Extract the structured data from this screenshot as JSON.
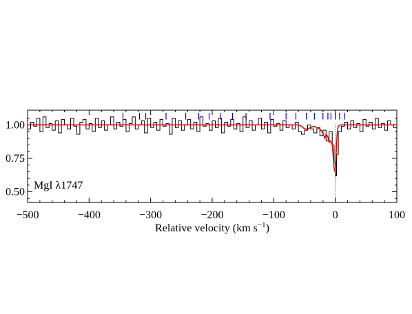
{
  "chart_data": {
    "type": "line",
    "title": "",
    "xlabel": "Relative velocity (km s",
    "xlabel_sup": "−1",
    "xlabel_close": ")",
    "ylabel": "",
    "xlim": [
      -500,
      100
    ],
    "ylim": [
      0.42,
      1.11
    ],
    "x_ticks": [
      -500,
      -400,
      -300,
      -200,
      -100,
      0,
      100
    ],
    "x_tick_labels": [
      "−500",
      "−400",
      "−300",
      "−200",
      "−100",
      "0",
      "100"
    ],
    "y_ticks": [
      0.5,
      0.75,
      1.0
    ],
    "y_tick_labels": [
      "0.50",
      "0.75",
      "1.00"
    ],
    "annotation": "MgI λ1747",
    "colors": {
      "data": "#000000",
      "model": "#e00000",
      "components": "#0000cc",
      "axis": "#000000"
    },
    "series": [
      {
        "kind": "step",
        "x": [
          -500,
          -495,
          -490,
          -485,
          -480,
          -475,
          -470,
          -465,
          -460,
          -455,
          -450,
          -445,
          -440,
          -435,
          -430,
          -425,
          -420,
          -415,
          -410,
          -405,
          -400,
          -395,
          -390,
          -385,
          -380,
          -375,
          -370,
          -365,
          -360,
          -355,
          -350,
          -345,
          -340,
          -335,
          -330,
          -325,
          -320,
          -315,
          -310,
          -305,
          -300,
          -295,
          -290,
          -285,
          -280,
          -275,
          -270,
          -265,
          -260,
          -255,
          -250,
          -245,
          -240,
          -235,
          -230,
          -225,
          -220,
          -215,
          -210,
          -205,
          -200,
          -195,
          -190,
          -185,
          -180,
          -175,
          -170,
          -165,
          -160,
          -155,
          -150,
          -145,
          -140,
          -135,
          -130,
          -125,
          -120,
          -115,
          -110,
          -105,
          -100,
          -95,
          -90,
          -85,
          -80,
          -75,
          -70,
          -65,
          -60,
          -55,
          -50,
          -45,
          -40,
          -35,
          -30,
          -25,
          -20,
          -15,
          -10,
          -5,
          -2,
          0,
          2,
          5,
          10,
          15,
          20,
          25,
          30,
          35,
          40,
          45,
          50,
          55,
          60,
          65,
          70,
          75,
          80,
          85,
          90,
          95,
          100
        ],
        "y": [
          0.97,
          1.02,
          0.99,
          1.05,
          0.95,
          1.06,
          0.98,
          1.01,
          0.96,
          1.03,
          0.94,
          1.04,
          1.0,
          0.97,
          1.05,
          0.99,
          0.93,
          1.02,
          1.04,
          0.97,
          1.01,
          0.95,
          1.05,
          0.98,
          1.03,
          0.96,
          1.0,
          1.06,
          0.97,
          1.02,
          0.99,
          1.04,
          0.95,
          1.01,
          1.06,
          0.97,
          1.0,
          1.03,
          0.94,
          1.05,
          0.98,
          1.02,
          0.96,
          1.04,
          0.99,
          1.01,
          0.93,
          1.05,
          0.98,
          1.03,
          0.96,
          1.0,
          1.04,
          0.97,
          1.02,
          0.95,
          1.06,
          0.99,
          1.01,
          0.96,
          1.03,
          0.98,
          1.05,
          0.94,
          1.02,
          0.99,
          1.04,
          0.97,
          1.01,
          0.95,
          1.06,
          0.98,
          1.03,
          0.96,
          1.0,
          1.05,
          0.97,
          1.02,
          0.94,
          1.04,
          0.99,
          1.01,
          0.96,
          1.03,
          0.98,
          1.0,
          0.97,
          1.02,
          0.95,
          0.93,
          0.96,
          1.0,
          0.97,
          0.94,
          0.98,
          0.92,
          0.96,
          0.88,
          0.95,
          0.85,
          0.72,
          0.62,
          0.78,
          0.95,
          0.99,
          1.02,
          0.97,
          1.03,
          0.98,
          1.01,
          0.95,
          1.04,
          0.99,
          1.02,
          0.97,
          1.05,
          0.98,
          1.01,
          0.96,
          1.03,
          1.0,
          0.98,
          1.02
        ]
      },
      {
        "kind": "line",
        "x": [
          -500,
          -60,
          -55,
          -50,
          -45,
          -40,
          -35,
          -30,
          -25,
          -20,
          -17,
          -15,
          -12,
          -10,
          -8,
          -5,
          -4,
          -3,
          -2,
          -1,
          0,
          1,
          2,
          3,
          4,
          5,
          8,
          10,
          15,
          20,
          100
        ],
        "y": [
          1.0,
          1.0,
          0.99,
          0.97,
          0.97,
          0.98,
          0.99,
          0.98,
          0.97,
          0.94,
          0.9,
          0.93,
          0.91,
          0.87,
          0.88,
          0.85,
          0.8,
          0.74,
          0.68,
          0.65,
          0.67,
          0.74,
          0.85,
          0.93,
          0.97,
          0.99,
          1.0,
          1.0,
          1.0,
          1.0,
          1.0
        ]
      }
    ],
    "components_x": [
      -345,
      -318,
      -308,
      -275,
      -243,
      -222,
      -205,
      -187,
      -167,
      -145,
      -106,
      -80,
      -64,
      -47,
      -34,
      -20,
      -12,
      -7,
      0,
      7,
      15
    ],
    "zero_line_x": 0
  }
}
